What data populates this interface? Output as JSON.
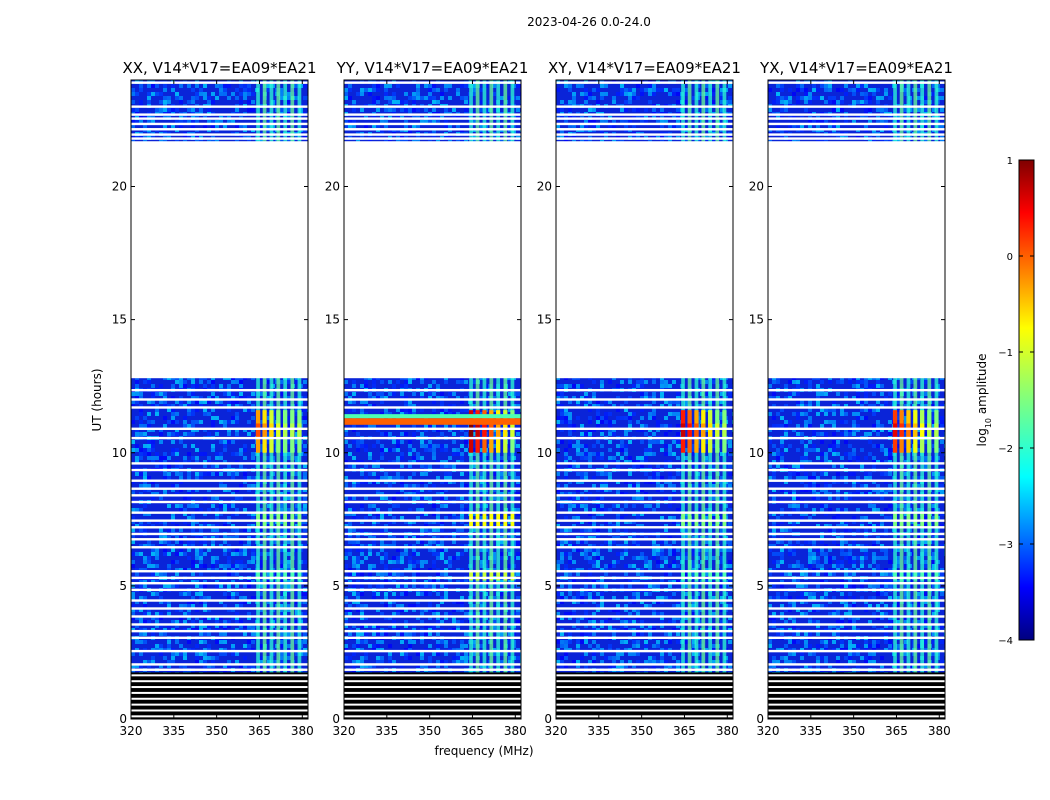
{
  "chart_data": {
    "type": "heatmap",
    "title": "2023-04-26 0.0-24.0",
    "xlabel": "frequency (MHz)",
    "ylabel": "UT (hours)",
    "xlim": [
      320,
      382
    ],
    "ylim": [
      0,
      24
    ],
    "xticks": [
      "320",
      "335",
      "350",
      "365",
      "380"
    ],
    "yticks": [
      "0",
      "5",
      "10",
      "15",
      "20"
    ],
    "colormap": "jet",
    "colorbar": {
      "label": "log",
      "label_sub": "10",
      "label_suffix": " amplitude",
      "range": [
        -4,
        1
      ],
      "ticks": [
        "1",
        "0",
        "−1",
        "−2",
        "−3",
        "−4"
      ],
      "tick_values": [
        1,
        0,
        -1,
        -2,
        -3,
        -4
      ]
    },
    "panels": [
      {
        "title": "XX, V14*V17=EA09*EA21",
        "rfi_peak": 0.72,
        "horizontal_band": 0.0
      },
      {
        "title": "YY, V14*V17=EA09*EA21",
        "rfi_peak": 0.92,
        "horizontal_band": 0.78
      },
      {
        "title": "XY, V14*V17=EA09*EA21",
        "rfi_peak": 0.85,
        "horizontal_band": 0.0
      },
      {
        "title": "YX, V14*V17=EA09*EA21",
        "rfi_peak": 0.82,
        "horizontal_band": 0.0
      }
    ],
    "flagged_gaps_hours": [
      [
        12.8,
        21.7
      ]
    ],
    "rfi_band_mhz": [
      363,
      381
    ],
    "colors": {
      "flagged": "#ffffff",
      "missing": "#000000",
      "background": "#0a2ae6"
    }
  }
}
